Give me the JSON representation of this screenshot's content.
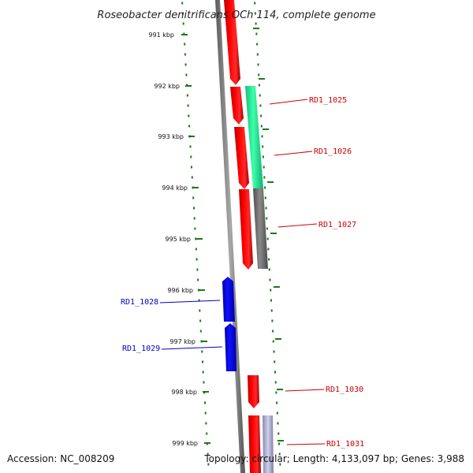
{
  "title": "Roseobacter denitrificans OCh 114, complete genome",
  "ticks": [
    "991 kbp",
    "992 kbp",
    "993 kbp",
    "994 kbp",
    "995 kbp",
    "996 kbp",
    "997 kbp",
    "998 kbp",
    "999 kbp"
  ],
  "genes_right": [
    "RD1_1025",
    "RD1_1026",
    "RD1_1027",
    "RD1_1030",
    "RD1_1031"
  ],
  "genes_left": [
    "RD1_1028",
    "RD1_1029"
  ],
  "footer": {
    "accession": "Accession: NC_008209",
    "topology": "Topology: circular; Length: 4,133,097 bp; Genes: 3,988"
  },
  "colors": {
    "forward_gene": "#ff0000",
    "reverse_gene": "#0000ee",
    "rna_gene": "#22ee99",
    "pseudo_gene": "#6e6e6e",
    "tick": "#1a7a1a",
    "backbone": "#777777",
    "label_right": "#cc0000",
    "label_left": "#0000cc"
  }
}
